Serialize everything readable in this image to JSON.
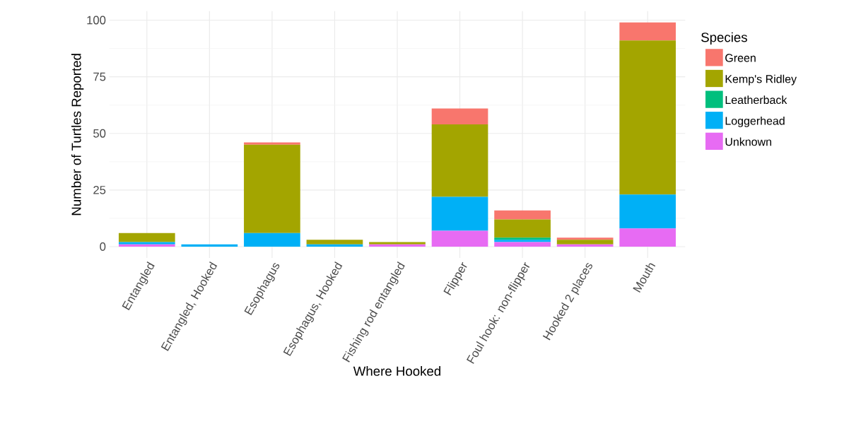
{
  "chart_data": {
    "type": "bar",
    "stacked": true,
    "xlabel": "Where Hooked",
    "ylabel": "Number of Turtles Reported",
    "legend_title": "Species",
    "legend": "right",
    "grid": true,
    "categories": [
      "Entangled",
      "Entangled, Hooked",
      "Esophagus",
      "Esophagus, Hooked",
      "Fishing rod entangled",
      "Flipper",
      "Foul hook: non-flipper",
      "Hooked 2 places",
      "Mouth"
    ],
    "ylim": [
      -5,
      104
    ],
    "yticks": [
      0,
      25,
      50,
      75,
      100
    ],
    "series": [
      {
        "name": "Unknown",
        "color": "#e76bf3",
        "values": [
          1,
          0,
          0,
          0,
          1,
          7,
          2,
          1,
          8
        ]
      },
      {
        "name": "Loggerhead",
        "color": "#00b0f6",
        "values": [
          1,
          1,
          6,
          1,
          0,
          15,
          1,
          0,
          15
        ]
      },
      {
        "name": "Leatherback",
        "color": "#00bf7d",
        "values": [
          0,
          0,
          0,
          0,
          0,
          0,
          1,
          0,
          0
        ]
      },
      {
        "name": "Kemp's Ridley",
        "color": "#a3a500",
        "values": [
          4,
          0,
          39,
          2,
          1,
          32,
          8,
          2,
          68
        ]
      },
      {
        "name": "Green",
        "color": "#f8766d",
        "values": [
          0,
          0,
          1,
          0,
          0,
          7,
          4,
          1,
          8
        ]
      }
    ]
  }
}
